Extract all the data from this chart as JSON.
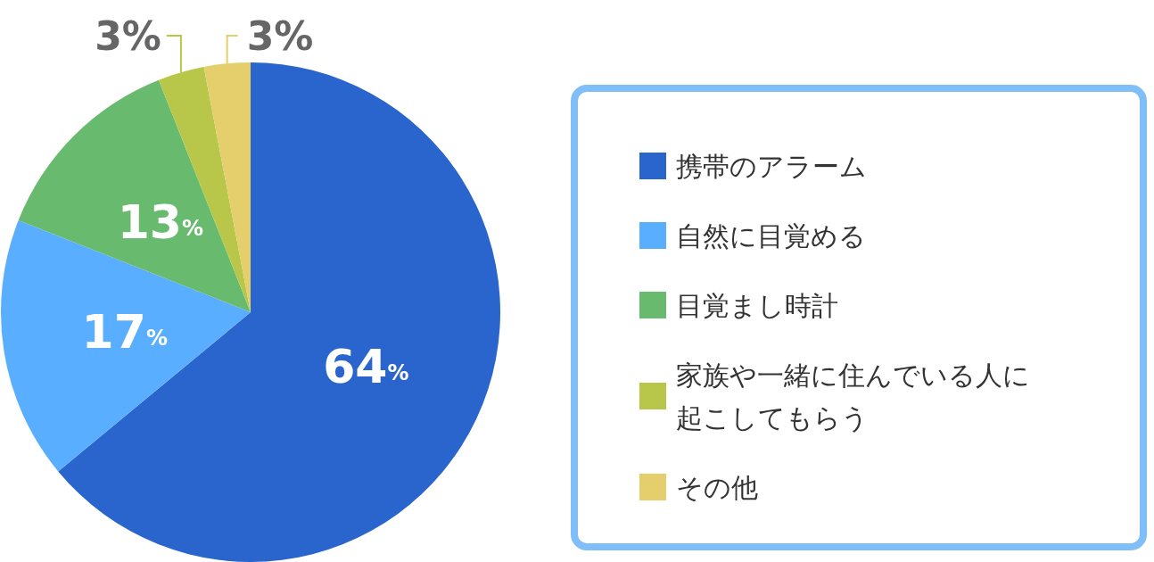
{
  "chart_data": {
    "type": "pie",
    "categories": [
      "携帯のアラーム",
      "自然に目覚める",
      "目覚まし時計",
      "家族や一緒に住んでいる人に起こしてもらう",
      "その他"
    ],
    "values": [
      64,
      17,
      13,
      3,
      3
    ],
    "colors": [
      "#2a64cd",
      "#5aaeff",
      "#68bb6e",
      "#b8c64a",
      "#e4cf6c"
    ],
    "value_labels": [
      "64%",
      "17%",
      "13%",
      "3%",
      "3%"
    ],
    "legend": "right"
  }
}
